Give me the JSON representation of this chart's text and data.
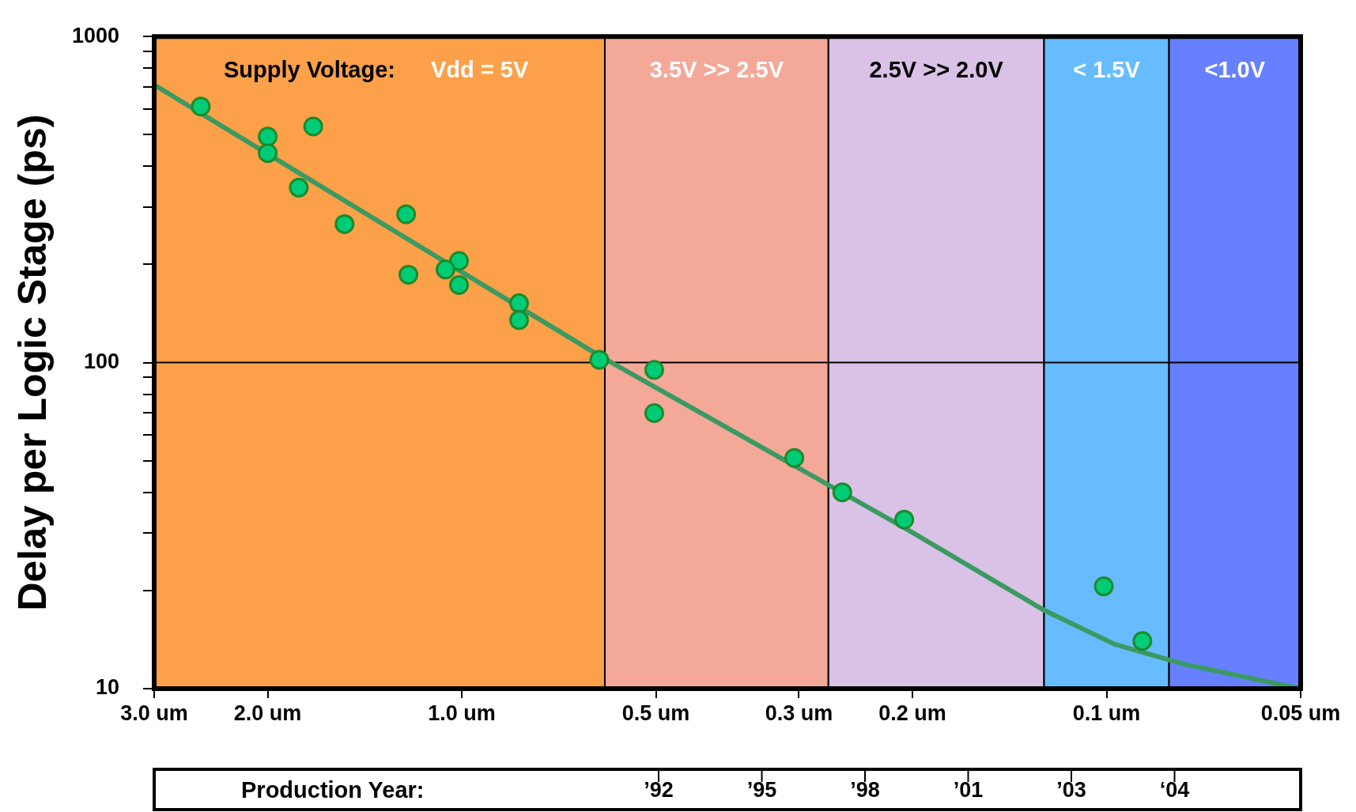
{
  "chart_data": {
    "type": "scatter",
    "ylabel": "Delay per Logic Stage (ps)",
    "log": "xy",
    "marker": "circle",
    "legend": false,
    "xlim": [
      3.0,
      0.05
    ],
    "xticks": [
      {
        "value": 3.0,
        "label": "3.0 um"
      },
      {
        "value": 2.0,
        "label": "2.0 um"
      },
      {
        "value": 1.0,
        "label": "1.0 um"
      },
      {
        "value": 0.5,
        "label": "0.5 um"
      },
      {
        "value": 0.3,
        "label": "0.3 um"
      },
      {
        "value": 0.2,
        "label": "0.2 um"
      },
      {
        "value": 0.1,
        "label": "0.1 um"
      },
      {
        "value": 0.05,
        "label": "0.05 um"
      }
    ],
    "ylim": [
      10,
      1000
    ],
    "yticks": [
      10,
      {
        "value": 20,
        "label": null
      },
      {
        "value": 30,
        "label": null
      },
      {
        "value": 40,
        "label": null
      },
      {
        "value": 50,
        "label": null
      },
      {
        "value": 60,
        "label": null
      },
      {
        "value": 70,
        "label": null
      },
      {
        "value": 80,
        "label": null
      },
      {
        "value": 90,
        "label": null
      },
      100,
      {
        "value": 200,
        "label": null
      },
      {
        "value": 300,
        "label": null
      },
      {
        "value": 400,
        "label": null
      },
      {
        "value": 500,
        "label": null
      },
      {
        "value": 600,
        "label": null
      },
      {
        "value": 700,
        "label": null
      },
      {
        "value": 800,
        "label": null
      },
      {
        "value": 900,
        "label": null
      },
      1000
    ],
    "annotations": [
      "Supply Voltage:",
      "Production Year:",
      "’92",
      "’95",
      "’98",
      "’01",
      "’03",
      "‘04"
    ],
    "bands": [
      {
        "axis": "x",
        "from": 3.0,
        "to": 0.6,
        "label": "Vdd = 5V",
        "color": "#fca049"
      },
      {
        "axis": "x",
        "from": 0.6,
        "to": 0.27,
        "label": "3.5V >> 2.5V",
        "color": "#f4a898"
      },
      {
        "axis": "x",
        "from": 0.27,
        "to": 0.125,
        "label": "2.5V >> 2.0V",
        "color": "#d9c2e6"
      },
      {
        "axis": "x",
        "from": 0.125,
        "to": 0.08,
        "label": "< 1.5V",
        "color": "#66bcff"
      },
      {
        "axis": "x",
        "from": 0.08,
        "to": 0.05,
        "label": "<1.0V",
        "color": "#6680ff"
      }
    ],
    "ref_lines": [
      {
        "axis": "y",
        "value": 100,
        "label": null
      }
    ],
    "series": [
      {
        "type": "line",
        "color": "#3a9a62",
        "marker": "none",
        "x": [
          3.0,
          0.612,
          0.205,
          0.125,
          0.0973,
          0.076,
          0.05
        ],
        "values": [
          711,
          105,
          31,
          17.4,
          13.7,
          11.9,
          10
        ]
      },
      {
        "color": "#00cc77",
        "x": [
          2.54,
          2.0,
          2.0,
          1.7,
          1.79,
          1.52,
          1.22,
          1.21,
          1.01,
          1.06,
          1.01,
          0.815,
          0.815,
          0.612,
          0.503,
          0.503,
          0.305,
          0.257,
          0.206,
          0.101,
          0.088
        ],
        "values": [
          610,
          493,
          439,
          530,
          344,
          266,
          285,
          186,
          205,
          193,
          173,
          152,
          135,
          102,
          95,
          70,
          51,
          40,
          33,
          20.6,
          14
        ]
      }
    ]
  }
}
